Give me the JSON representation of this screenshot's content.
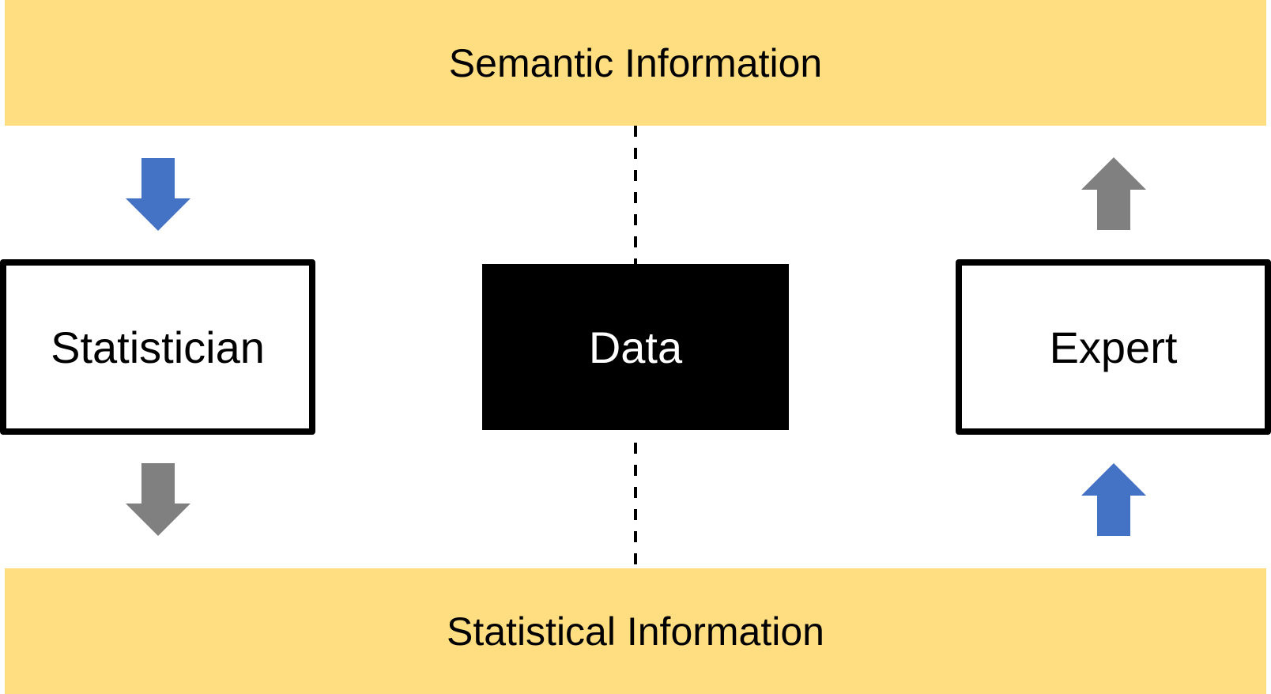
{
  "bands": {
    "top_label": "Semantic Information",
    "bottom_label": "Statistical Information",
    "color": "#FFDE82"
  },
  "nodes": {
    "statistician": "Statistician",
    "data": "Data",
    "expert": "Expert",
    "data_fill": "#000000"
  },
  "arrows": {
    "blue": "#4472C4",
    "gray": "#808080",
    "statistician_in": "arrow-down-icon",
    "statistician_out": "arrow-down-icon",
    "expert_in": "arrow-up-icon",
    "expert_out": "arrow-up-icon"
  }
}
